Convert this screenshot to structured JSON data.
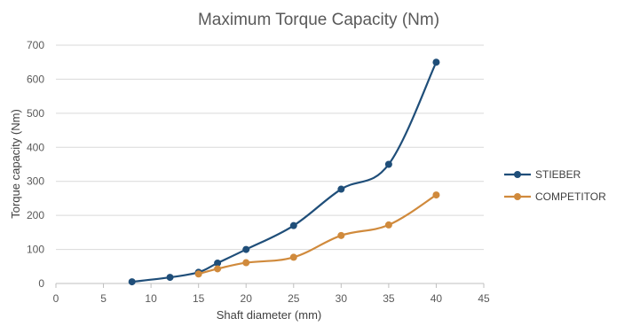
{
  "chart_data": {
    "type": "line",
    "title": "Maximum Torque Capacity (Nm)",
    "xlabel": "Shaft diameter (mm)",
    "ylabel": "Torque capacity (Nm)",
    "xlim": [
      0,
      45
    ],
    "ylim": [
      0,
      700
    ],
    "xticks": [
      0,
      5,
      10,
      15,
      20,
      25,
      30,
      35,
      40,
      45
    ],
    "yticks": [
      0,
      100,
      200,
      300,
      400,
      500,
      600,
      700
    ],
    "grid": "horizontal",
    "legend": "right",
    "smooth": true,
    "series": [
      {
        "name": "STIEBER",
        "color": "#1f4e79",
        "points": [
          [
            8,
            5
          ],
          [
            12,
            18
          ],
          [
            15,
            33
          ],
          [
            17,
            60
          ],
          [
            20,
            100
          ],
          [
            25,
            170
          ],
          [
            30,
            277
          ],
          [
            35,
            350
          ],
          [
            40,
            650
          ]
        ]
      },
      {
        "name": "COMPETITOR",
        "color": "#d08a3c",
        "points": [
          [
            15,
            28
          ],
          [
            17,
            43
          ],
          [
            20,
            61
          ],
          [
            25,
            77
          ],
          [
            30,
            141
          ],
          [
            35,
            172
          ],
          [
            40,
            260
          ]
        ]
      }
    ]
  }
}
